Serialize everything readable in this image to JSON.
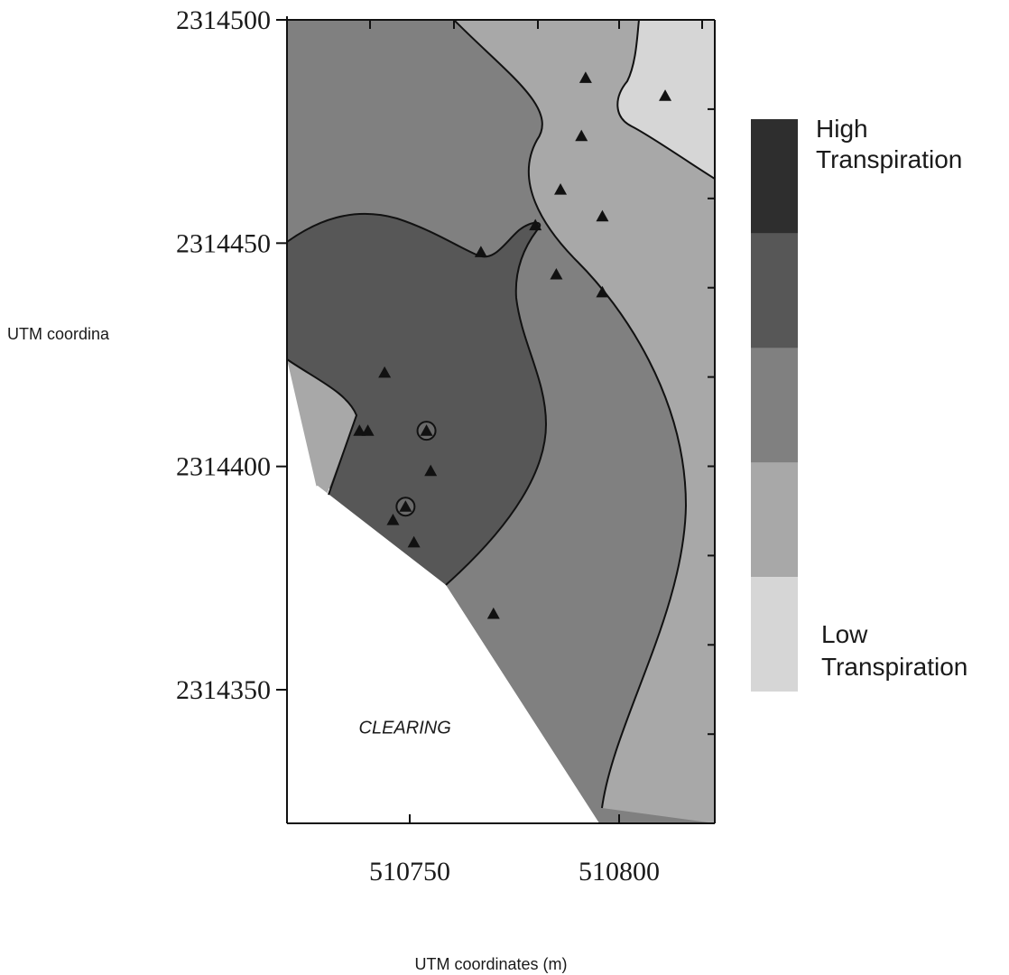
{
  "chart_data": {
    "type": "contour",
    "xlabel": "UTM coordinates (m)",
    "ylabel": "UTM coordina",
    "xlim": [
      510720,
      510822
    ],
    "ylim": [
      2314318,
      2314500
    ],
    "x_ticks": [
      510750,
      510800
    ],
    "y_ticks": [
      2314500,
      2314450,
      2314400,
      2314350
    ],
    "legend": {
      "placement": "right",
      "high_label": [
        "High",
        "Transpiration"
      ],
      "low_label": [
        "Low",
        "Transpiration"
      ],
      "classes": [
        {
          "level": 5,
          "color": "#2e2e2e"
        },
        {
          "level": 4,
          "color": "#575757"
        },
        {
          "level": 3,
          "color": "#808080"
        },
        {
          "level": 2,
          "color": "#a8a8a8"
        },
        {
          "level": 1,
          "color": "#d6d6d6"
        }
      ]
    },
    "annotations": [
      {
        "text": "CLEARING",
        "x": 510751,
        "y": 2314343
      }
    ],
    "sample_points": [
      {
        "x": 510792,
        "y": 2314487,
        "marker": "triangle"
      },
      {
        "x": 510811,
        "y": 2314483,
        "marker": "triangle"
      },
      {
        "x": 510791,
        "y": 2314474,
        "marker": "triangle"
      },
      {
        "x": 510786,
        "y": 2314462,
        "marker": "triangle"
      },
      {
        "x": 510796,
        "y": 2314456,
        "marker": "triangle"
      },
      {
        "x": 510780,
        "y": 2314454,
        "marker": "triangle"
      },
      {
        "x": 510767,
        "y": 2314448,
        "marker": "triangle"
      },
      {
        "x": 510785,
        "y": 2314443,
        "marker": "triangle"
      },
      {
        "x": 510796,
        "y": 2314439,
        "marker": "triangle"
      },
      {
        "x": 510744,
        "y": 2314421,
        "marker": "triangle"
      },
      {
        "x": 510738,
        "y": 2314408,
        "marker": "triangle"
      },
      {
        "x": 510740,
        "y": 2314408,
        "marker": "triangle"
      },
      {
        "x": 510754,
        "y": 2314408,
        "marker": "circle-triangle"
      },
      {
        "x": 510755,
        "y": 2314399,
        "marker": "triangle"
      },
      {
        "x": 510749,
        "y": 2314391,
        "marker": "circle-triangle"
      },
      {
        "x": 510746,
        "y": 2314388,
        "marker": "triangle"
      },
      {
        "x": 510751,
        "y": 2314383,
        "marker": "triangle"
      },
      {
        "x": 510770,
        "y": 2314367,
        "marker": "triangle"
      }
    ]
  }
}
